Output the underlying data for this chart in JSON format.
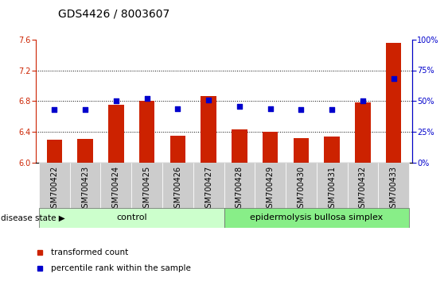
{
  "title": "GDS4426 / 8003607",
  "samples": [
    "GSM700422",
    "GSM700423",
    "GSM700424",
    "GSM700425",
    "GSM700426",
    "GSM700427",
    "GSM700428",
    "GSM700429",
    "GSM700430",
    "GSM700431",
    "GSM700432",
    "GSM700433"
  ],
  "red_values": [
    6.3,
    6.31,
    6.75,
    6.8,
    6.35,
    6.87,
    6.43,
    6.4,
    6.32,
    6.34,
    6.78,
    7.55
  ],
  "blue_values": [
    43,
    43,
    50,
    52,
    44,
    51,
    46,
    44,
    43,
    43,
    50,
    68
  ],
  "ylim_left": [
    6.0,
    7.6
  ],
  "ylim_right": [
    0,
    100
  ],
  "yticks_left": [
    6.0,
    6.4,
    6.8,
    7.2,
    7.6
  ],
  "yticks_right": [
    0,
    25,
    50,
    75,
    100
  ],
  "red_color": "#CC2200",
  "blue_color": "#0000CC",
  "bar_width": 0.5,
  "control_color": "#ccffcc",
  "disease_color": "#88ee88",
  "tick_bg_color": "#cccccc",
  "control_label": "control",
  "disease_label": "epidermolysis bullosa simplex",
  "n_control": 6,
  "n_disease": 6,
  "legend_red": "transformed count",
  "legend_blue": "percentile rank within the sample",
  "disease_state_label": "disease state",
  "title_fontsize": 10,
  "tick_fontsize": 7,
  "label_fontsize": 8,
  "grid_yticks": [
    6.4,
    6.8,
    7.2
  ]
}
